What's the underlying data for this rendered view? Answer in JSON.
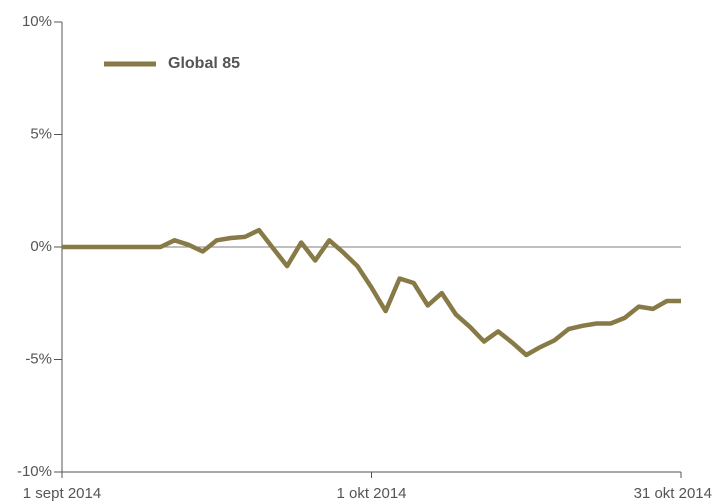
{
  "chart_data": {
    "type": "line",
    "categories": [
      "1 sept 2014",
      null,
      null,
      null,
      null,
      null,
      null,
      null,
      null,
      null,
      null,
      null,
      null,
      null,
      null,
      null,
      null,
      null,
      null,
      null,
      null,
      null,
      "1 okt 2014",
      null,
      null,
      null,
      null,
      null,
      null,
      null,
      null,
      null,
      null,
      null,
      null,
      null,
      null,
      null,
      null,
      null,
      null,
      null,
      null,
      null,
      "31 okt 2014"
    ],
    "series": [
      {
        "name": "Global 85",
        "color": "#877a46",
        "values": [
          0,
          0,
          0,
          0,
          0,
          0,
          0,
          0,
          0.3,
          0.1,
          -0.2,
          0.3,
          0.4,
          0.45,
          0.75,
          -0.05,
          -0.85,
          0.2,
          -0.6,
          0.3,
          -0.25,
          -0.85,
          -1.8,
          -2.85,
          -1.4,
          -1.6,
          -2.6,
          -2.05,
          -3.0,
          -3.55,
          -4.2,
          -3.75,
          -4.25,
          -4.8,
          -4.45,
          -4.15,
          -3.65,
          -3.5,
          -3.4,
          -3.4,
          -3.15,
          -2.65,
          -2.75,
          -2.4,
          -2.4
        ]
      }
    ],
    "ylim": [
      -10,
      10
    ],
    "yticks": [
      {
        "value": -10,
        "label": "-10%"
      },
      {
        "value": -5,
        "label": "-5%"
      },
      {
        "value": 0,
        "label": "0%"
      },
      {
        "value": 5,
        "label": "5%"
      },
      {
        "value": 10,
        "label": "10%"
      }
    ],
    "zero_line": true,
    "legend": "upper left"
  }
}
